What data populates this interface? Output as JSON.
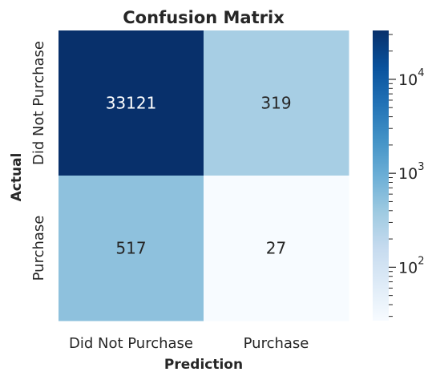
{
  "chart_data": {
    "type": "heatmap",
    "title": "Confusion Matrix",
    "xlabel": "Prediction",
    "ylabel": "Actual",
    "x_categories": [
      "Did Not Purchase",
      "Purchase"
    ],
    "y_categories": [
      "Did Not Purchase",
      "Purchase"
    ],
    "values": [
      [
        33121,
        319
      ],
      [
        517,
        27
      ]
    ],
    "colormap": "Blues",
    "colorbar": {
      "scale": "log",
      "range": [
        27,
        33121
      ],
      "major_ticks": [
        {
          "value": 100,
          "base": "10",
          "exp": "2"
        },
        {
          "value": 1000,
          "base": "10",
          "exp": "3"
        },
        {
          "value": 10000,
          "base": "10",
          "exp": "4"
        }
      ]
    },
    "grid": false,
    "legend": "colorbar-right"
  }
}
